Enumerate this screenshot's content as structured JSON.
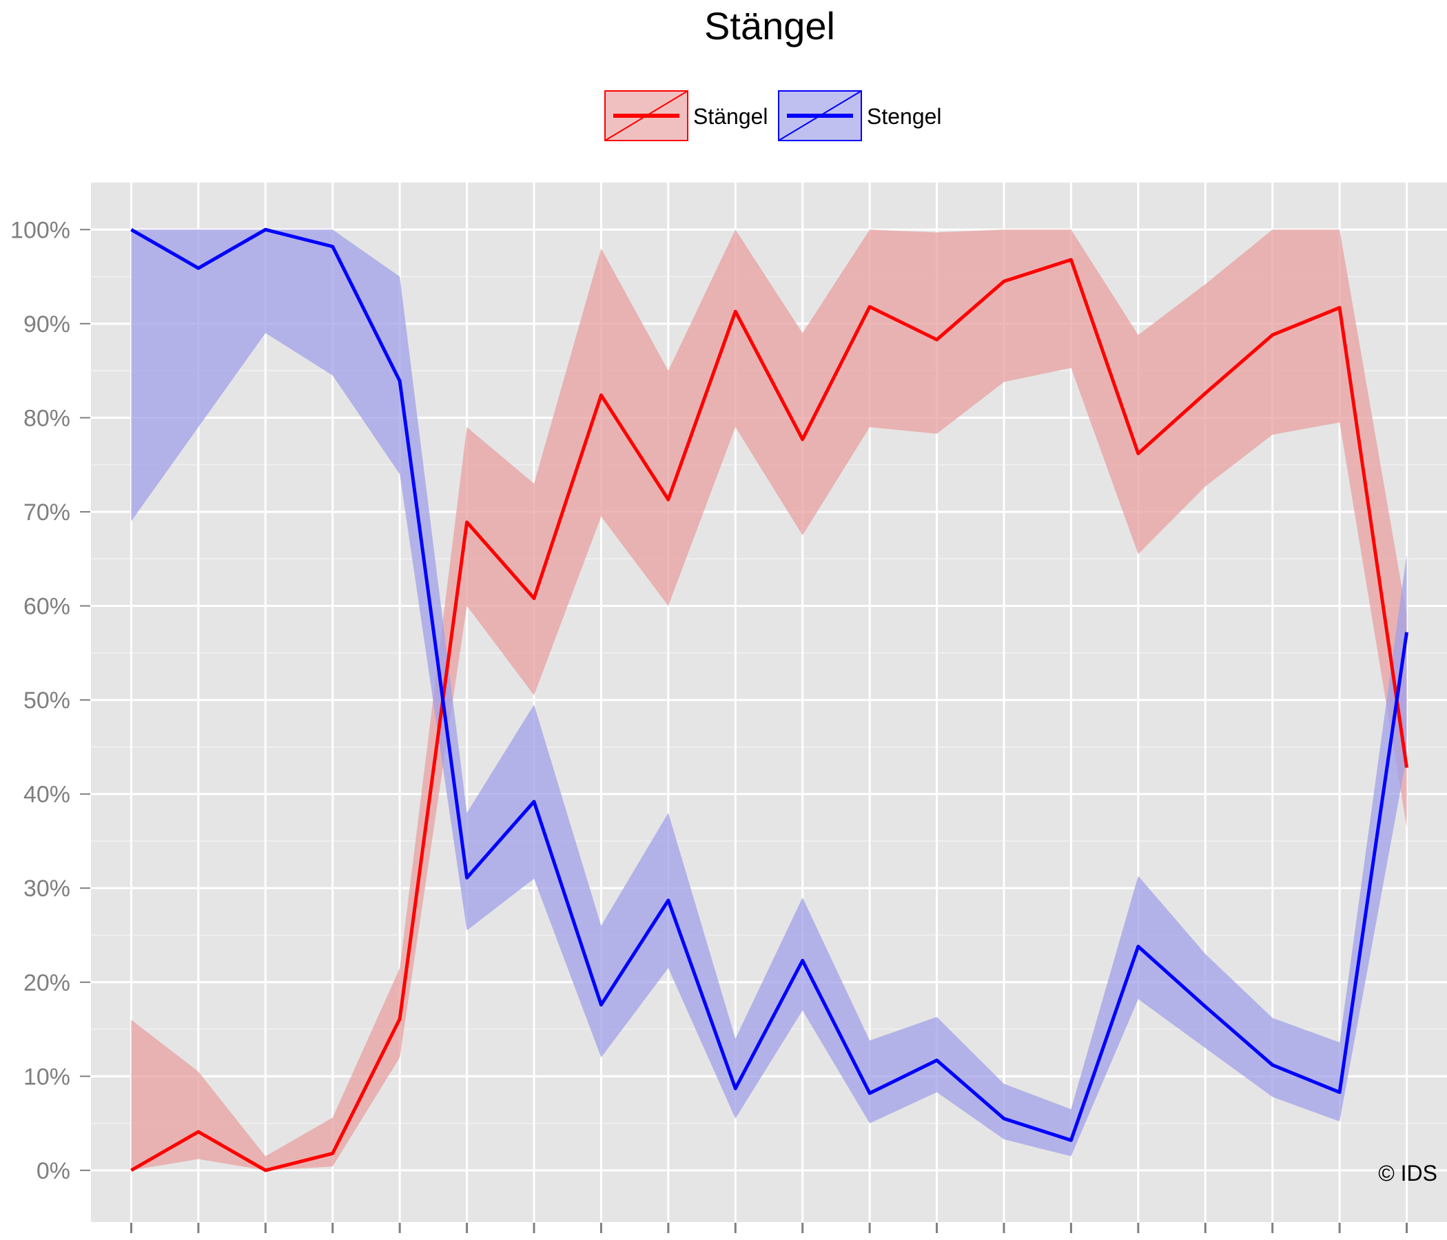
{
  "chart_data": {
    "type": "line",
    "title": "Stängel",
    "xlabel": "",
    "ylabel": "",
    "x": [
      1,
      2,
      3,
      4,
      5,
      6,
      7,
      8,
      9,
      10,
      11,
      12,
      13,
      14,
      15,
      16,
      17,
      18,
      19,
      20
    ],
    "xlim": [
      0.4,
      20.6
    ],
    "ylim": [
      -0.055,
      1.05
    ],
    "yticks": [
      0,
      0.1,
      0.2,
      0.3,
      0.4,
      0.5,
      0.6,
      0.7,
      0.8,
      0.9,
      1.0
    ],
    "ytick_labels": [
      "0%",
      "10%",
      "20%",
      "30%",
      "40%",
      "50%",
      "60%",
      "70%",
      "80%",
      "90%",
      "100%"
    ],
    "grid": true,
    "legend_position": "top",
    "series": [
      {
        "name": "Stängel",
        "color": "#ff0000",
        "band_color": "#e8a0a0",
        "values": [
          0.0,
          0.041,
          0.0,
          0.018,
          0.161,
          0.689,
          0.608,
          0.824,
          0.713,
          0.913,
          0.777,
          0.918,
          0.883,
          0.945,
          0.968,
          0.762,
          0.826,
          0.888,
          0.917,
          0.428
        ],
        "lower": [
          0.0,
          0.012,
          0.0,
          0.004,
          0.12,
          0.6,
          0.505,
          0.695,
          0.6,
          0.79,
          0.675,
          0.79,
          0.783,
          0.838,
          0.853,
          0.655,
          0.727,
          0.782,
          0.795,
          0.365
        ],
        "upper": [
          0.16,
          0.105,
          0.015,
          0.056,
          0.215,
          0.79,
          0.73,
          0.98,
          0.85,
          1.0,
          0.89,
          1.0,
          0.997,
          1.0,
          1.0,
          0.888,
          0.942,
          1.0,
          1.0,
          0.59
        ]
      },
      {
        "name": "Stengel",
        "color": "#0000ff",
        "band_color": "#a0a0e8",
        "values": [
          1.0,
          0.959,
          1.0,
          0.982,
          0.839,
          0.311,
          0.392,
          0.176,
          0.287,
          0.087,
          0.223,
          0.082,
          0.117,
          0.055,
          0.032,
          0.238,
          0.174,
          0.112,
          0.083,
          0.572
        ],
        "lower": [
          0.69,
          0.79,
          0.89,
          0.845,
          0.74,
          0.255,
          0.31,
          0.12,
          0.215,
          0.055,
          0.17,
          0.05,
          0.083,
          0.033,
          0.015,
          0.182,
          0.13,
          0.078,
          0.052,
          0.44
        ],
        "upper": [
          1.0,
          1.0,
          1.0,
          1.0,
          0.95,
          0.38,
          0.495,
          0.26,
          0.38,
          0.14,
          0.29,
          0.138,
          0.163,
          0.092,
          0.065,
          0.313,
          0.23,
          0.162,
          0.136,
          0.655
        ]
      }
    ]
  },
  "copyright": "© IDS"
}
